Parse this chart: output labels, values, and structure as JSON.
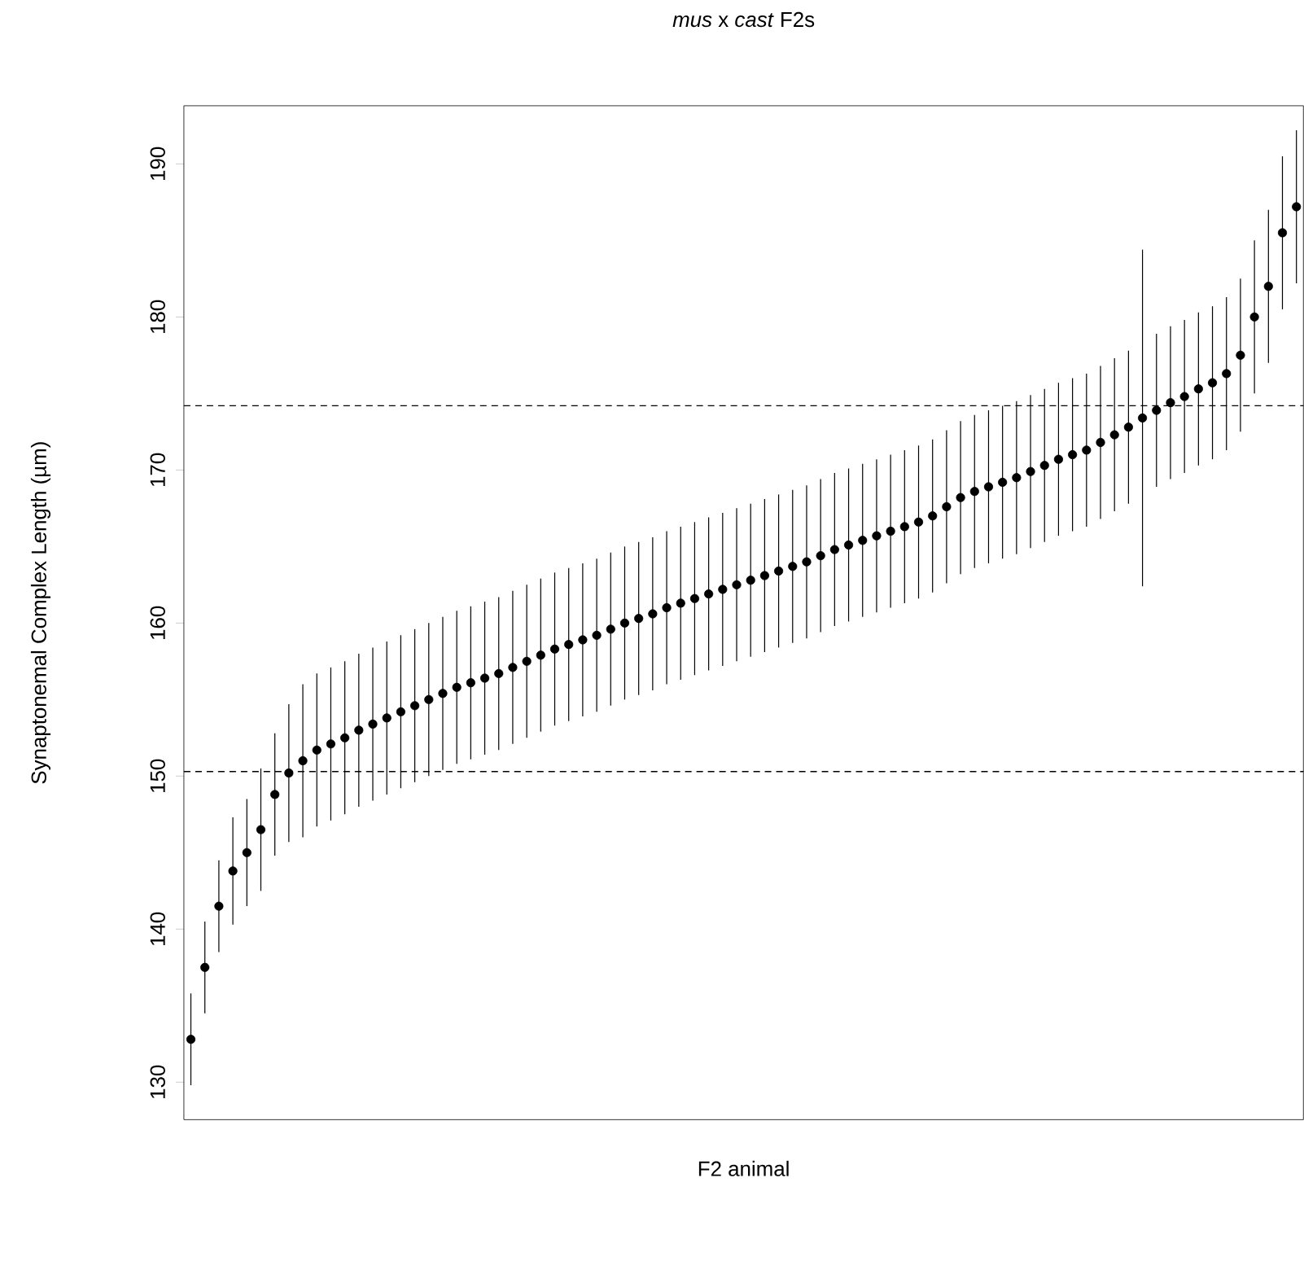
{
  "chart_data": {
    "type": "scatter",
    "title": "*mus* x *cast* F2s",
    "xlabel": "F2 animal",
    "ylabel": "Synaptonemal Complex Length (µm)",
    "categories": [
      null,
      null,
      null,
      null,
      null,
      null,
      null,
      null,
      null,
      null,
      null,
      null,
      null,
      null,
      null,
      null,
      null,
      null,
      null,
      null,
      null,
      null,
      null,
      null,
      null,
      null,
      null,
      null,
      null,
      null,
      null,
      null,
      null,
      null,
      null,
      null,
      null,
      null,
      null,
      null,
      null,
      null,
      null,
      null,
      null,
      null,
      null,
      null,
      null,
      null,
      null,
      null,
      null,
      null,
      null,
      null,
      null,
      null,
      null,
      null,
      null,
      null,
      null,
      null,
      null,
      null,
      null,
      null,
      null,
      null,
      null,
      null,
      null,
      null,
      null,
      null,
      null,
      null,
      null,
      null
    ],
    "values": [
      132.8,
      137.5,
      141.5,
      143.8,
      145.0,
      146.5,
      148.8,
      150.2,
      151.0,
      151.7,
      152.1,
      152.5,
      153.0,
      153.4,
      153.8,
      154.2,
      154.6,
      155.0,
      155.4,
      155.8,
      156.1,
      156.4,
      156.7,
      157.1,
      157.5,
      157.9,
      158.3,
      158.6,
      158.9,
      159.2,
      159.6,
      160.0,
      160.3,
      160.6,
      161.0,
      161.3,
      161.6,
      161.9,
      162.2,
      162.5,
      162.8,
      163.1,
      163.4,
      163.7,
      164.0,
      164.4,
      164.8,
      165.1,
      165.4,
      165.7,
      166.0,
      166.3,
      166.6,
      167.0,
      167.6,
      168.2,
      168.6,
      168.9,
      169.2,
      169.5,
      169.9,
      170.3,
      170.7,
      171.0,
      171.3,
      171.8,
      172.3,
      172.8,
      173.4,
      173.9,
      174.4,
      174.8,
      175.3,
      175.7,
      176.3,
      177.5,
      180.0,
      182.0,
      185.5,
      187.2
    ],
    "errors": [
      3,
      3,
      3,
      3.5,
      3.5,
      4,
      4,
      4.5,
      5,
      5,
      5,
      5,
      5,
      5,
      5,
      5,
      5,
      5,
      5,
      5,
      5,
      5,
      5,
      5,
      5,
      5,
      5,
      5,
      5,
      5,
      5,
      5,
      5,
      5,
      5,
      5,
      5,
      5,
      5,
      5,
      5,
      5,
      5,
      5,
      5,
      5,
      5,
      5,
      5,
      5,
      5,
      5,
      5,
      5,
      5,
      5,
      5,
      5,
      5,
      5,
      5,
      5,
      5,
      5,
      5,
      5,
      5,
      5,
      11,
      5,
      5,
      5,
      5,
      5,
      5,
      5,
      5,
      5,
      5,
      5
    ],
    "color": "#000000",
    "marker": "circle",
    "ylim": [
      127.55,
      193.8
    ],
    "yticks": [
      130,
      140,
      150,
      160,
      170,
      180,
      190
    ],
    "tick_labels": "y",
    "ref_lines": [
      {
        "axis": "y",
        "value": 174.2,
        "line_style": "dashed",
        "color": "#000000"
      },
      {
        "axis": "y",
        "value": 150.3,
        "line_style": "dashed",
        "color": "#000000"
      }
    ]
  }
}
